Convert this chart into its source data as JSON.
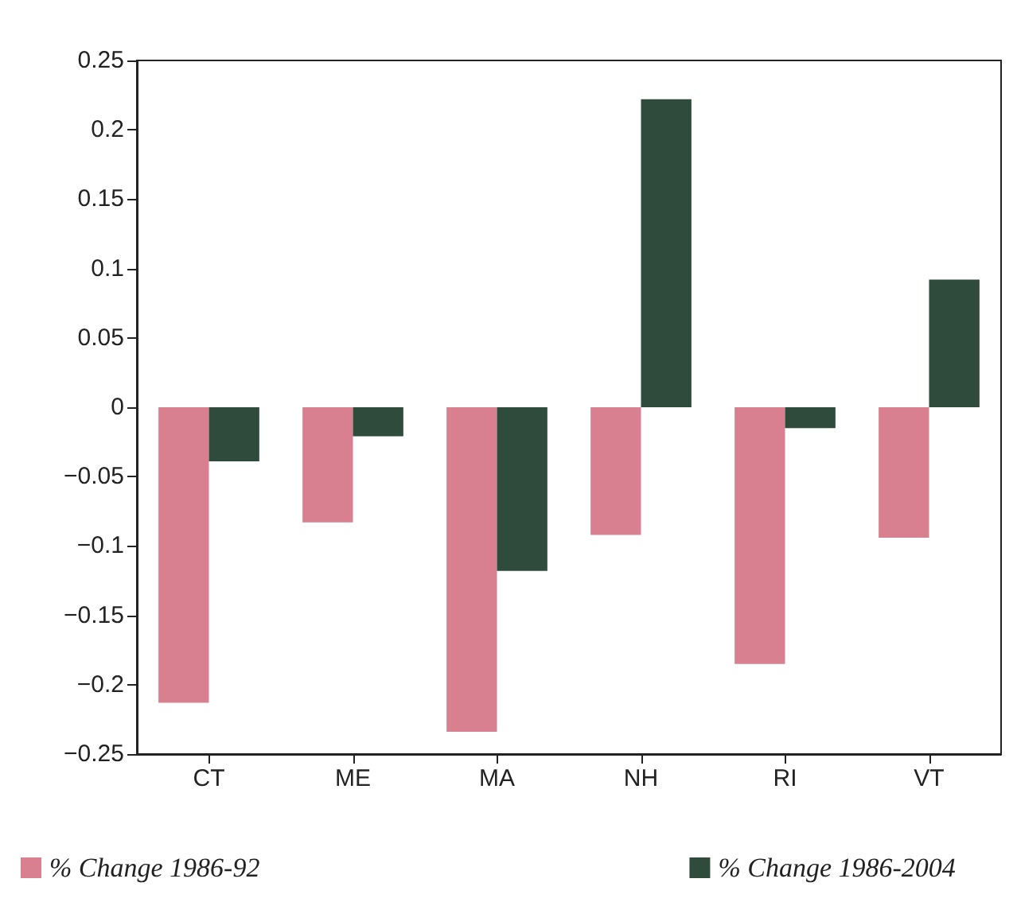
{
  "chart_data": {
    "type": "bar",
    "categories": [
      "CT",
      "ME",
      "MA",
      "NH",
      "RI",
      "VT"
    ],
    "series": [
      {
        "name": "% Change 1986-92",
        "color": "#d8808f",
        "values": [
          -0.213,
          -0.083,
          -0.234,
          -0.092,
          -0.185,
          -0.094
        ]
      },
      {
        "name": "% Change 1986-2004",
        "color": "#2f4b3b",
        "values": [
          -0.039,
          -0.021,
          -0.118,
          0.222,
          -0.015,
          0.092
        ]
      }
    ],
    "ylim": [
      -0.25,
      0.25
    ],
    "yticks": [
      -0.25,
      -0.2,
      -0.15,
      -0.1,
      -0.05,
      0,
      0.05,
      0.1,
      0.15,
      0.2,
      0.25
    ],
    "grid": false,
    "legend": "bottom"
  }
}
